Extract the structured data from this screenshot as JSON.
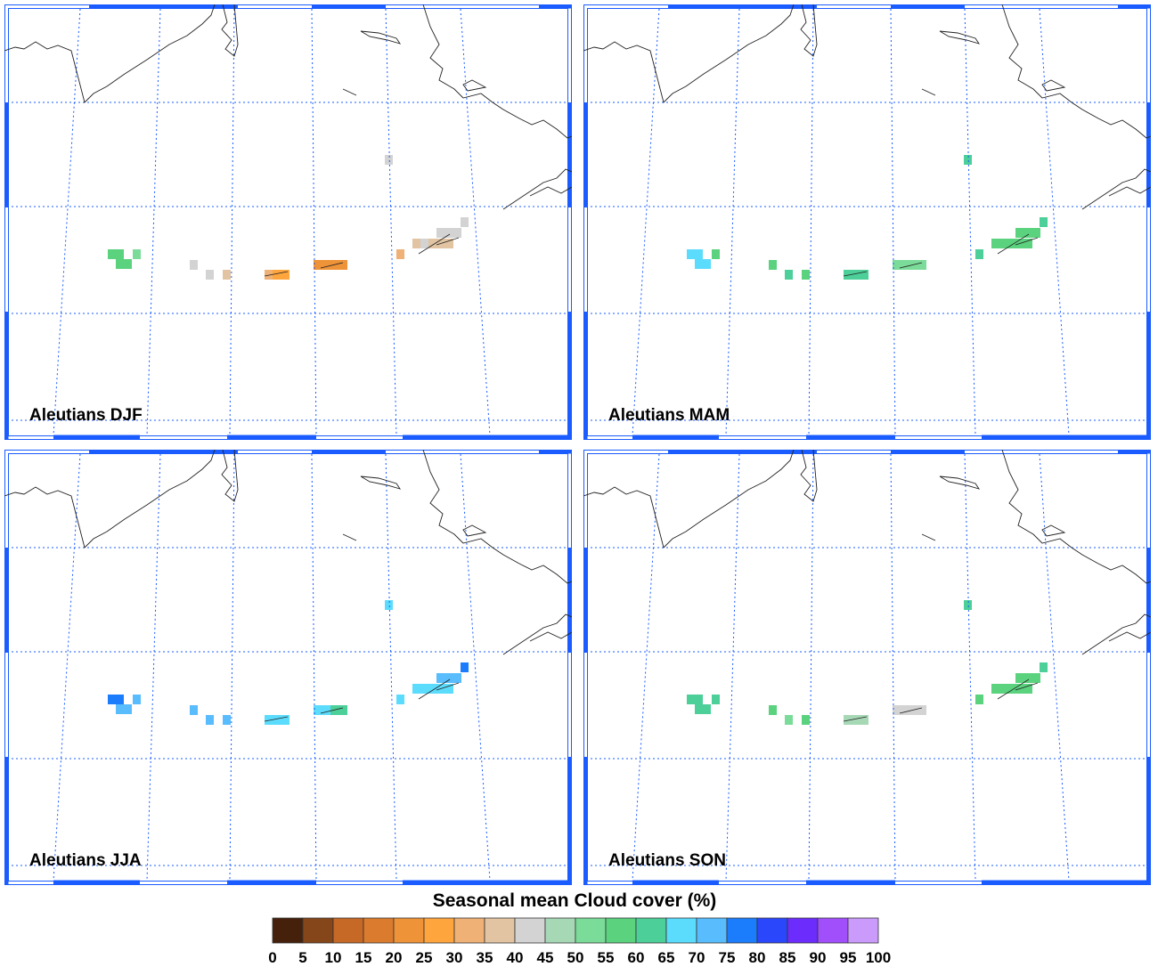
{
  "panels": [
    {
      "title": "Aleutians DJF",
      "values": [
        57,
        57,
        52,
        57,
        57,
        42,
        42,
        37,
        32,
        27,
        27,
        22,
        22,
        32,
        37,
        42,
        37,
        42,
        42,
        42
      ]
    },
    {
      "title": "Aleutians MAM",
      "values": [
        67,
        67,
        57,
        67,
        67,
        57,
        62,
        57,
        62,
        62,
        62,
        52,
        52,
        62,
        57,
        57,
        57,
        57,
        62,
        62
      ]
    },
    {
      "title": "Aleutians JJA",
      "values": [
        77,
        77,
        72,
        72,
        72,
        72,
        72,
        72,
        67,
        67,
        67,
        67,
        62,
        67,
        67,
        67,
        67,
        72,
        77,
        67
      ]
    },
    {
      "title": "Aleutians SON",
      "values": [
        62,
        62,
        62,
        62,
        62,
        57,
        52,
        57,
        47,
        47,
        47,
        42,
        42,
        57,
        57,
        57,
        57,
        57,
        62,
        62
      ]
    }
  ],
  "colorbar": {
    "title": "Seasonal mean Cloud cover (%)",
    "levels": [
      "0",
      "5",
      "10",
      "15",
      "20",
      "25",
      "30",
      "35",
      "40",
      "45",
      "50",
      "55",
      "60",
      "65",
      "70",
      "75",
      "80",
      "85",
      "90",
      "95",
      "100"
    ],
    "colors": [
      "#45210c",
      "#85461a",
      "#c66826",
      "#da7b2e",
      "#ee9338",
      "#fea53d",
      "#efb175",
      "#e2c4a2",
      "#d3d3d3",
      "#a7d8b6",
      "#7bdc9a",
      "#5bd27e",
      "#4ccf99",
      "#5cdcfd",
      "#58bcfd",
      "#1c7dfc",
      "#2b47fc",
      "#6c2cfb",
      "#a04ffb",
      "#cb9bfc"
    ]
  },
  "chart_data": {
    "type": "heatmap",
    "title": "Seasonal mean Cloud cover (%)",
    "units": "%",
    "seasons": [
      "DJF",
      "MAM",
      "JJA",
      "SON"
    ],
    "range": [
      0,
      100
    ],
    "bin_width": 5
  }
}
